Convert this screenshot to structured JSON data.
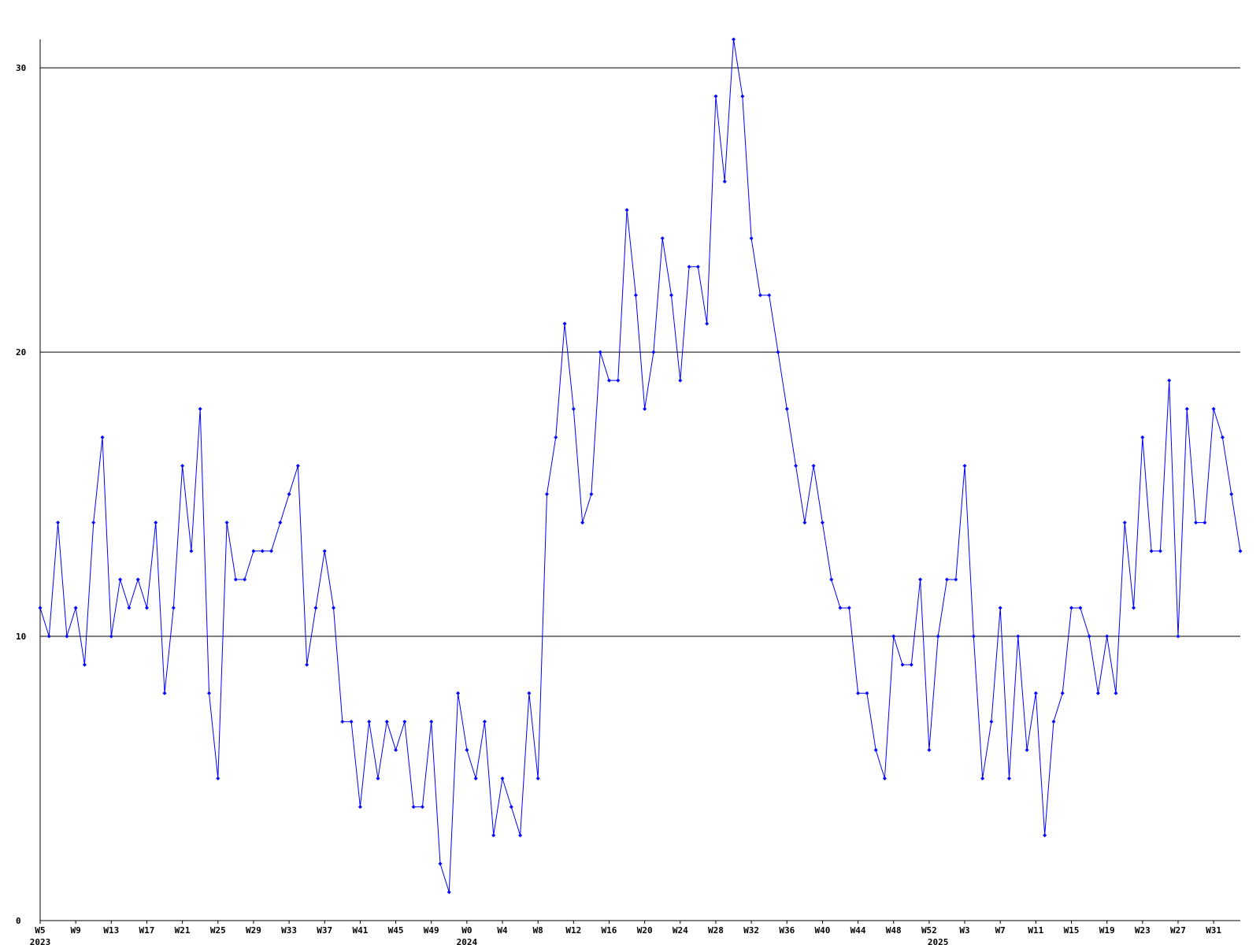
{
  "chart_data": {
    "type": "line",
    "color": "#0000ff",
    "grid": true,
    "ylim": [
      0,
      31
    ],
    "yticks": [
      0,
      10,
      20,
      30
    ],
    "categories": [
      "W5",
      null,
      null,
      null,
      "W9",
      null,
      null,
      null,
      "W13",
      null,
      null,
      null,
      "W17",
      null,
      null,
      null,
      "W21",
      null,
      null,
      null,
      "W25",
      null,
      null,
      null,
      "W29",
      null,
      null,
      null,
      "W33",
      null,
      null,
      null,
      "W37",
      null,
      null,
      null,
      "W41",
      null,
      null,
      null,
      "W45",
      null,
      null,
      null,
      "W49",
      null,
      null,
      null,
      "W0",
      null,
      null,
      null,
      "W4",
      null,
      null,
      null,
      "W8",
      null,
      null,
      null,
      "W12",
      null,
      null,
      null,
      "W16",
      null,
      null,
      null,
      "W20",
      null,
      null,
      null,
      "W24",
      null,
      null,
      null,
      "W28",
      null,
      null,
      null,
      "W32",
      null,
      null,
      null,
      "W36",
      null,
      null,
      null,
      "W40",
      null,
      null,
      null,
      "W44",
      null,
      null,
      null,
      "W48",
      null,
      null,
      null,
      "W52",
      null,
      null,
      null,
      "W3",
      null,
      null,
      null,
      "W7",
      null,
      null,
      null,
      "W11",
      null,
      null,
      null,
      "W15",
      null,
      null,
      null,
      "W19",
      null,
      null,
      null,
      "W23",
      null,
      null,
      null,
      "W27",
      null,
      null,
      null,
      "W31",
      null,
      null,
      null
    ],
    "years": [
      "2023",
      null,
      null,
      null,
      null,
      null,
      null,
      null,
      null,
      null,
      null,
      null,
      null,
      null,
      null,
      null,
      null,
      null,
      null,
      null,
      null,
      null,
      null,
      null,
      null,
      null,
      null,
      null,
      null,
      null,
      null,
      null,
      null,
      null,
      null,
      null,
      null,
      null,
      null,
      null,
      null,
      null,
      null,
      null,
      null,
      null,
      null,
      null,
      "2024",
      null,
      null,
      null,
      null,
      null,
      null,
      null,
      null,
      null,
      null,
      null,
      null,
      null,
      null,
      null,
      null,
      null,
      null,
      null,
      null,
      null,
      null,
      null,
      null,
      null,
      null,
      null,
      null,
      null,
      null,
      null,
      null,
      null,
      null,
      null,
      null,
      null,
      null,
      null,
      null,
      null,
      null,
      null,
      null,
      null,
      null,
      null,
      null,
      null,
      null,
      null,
      null,
      "2025",
      null,
      null,
      null,
      null,
      null,
      null,
      null,
      null,
      null,
      null,
      null,
      null,
      null,
      null,
      null,
      null,
      null,
      null,
      null,
      null,
      null,
      null,
      null,
      null,
      null,
      null,
      null,
      null,
      null,
      null,
      null,
      null,
      null
    ],
    "values": [
      11,
      10,
      14,
      10,
      11,
      9,
      14,
      17,
      10,
      12,
      11,
      12,
      11,
      14,
      8,
      11,
      16,
      13,
      18,
      8,
      5,
      14,
      12,
      12,
      13,
      13,
      13,
      14,
      15,
      16,
      9,
      11,
      13,
      11,
      7,
      7,
      4,
      7,
      5,
      7,
      6,
      7,
      4,
      4,
      7,
      2,
      1,
      8,
      6,
      5,
      7,
      3,
      5,
      4,
      3,
      8,
      5,
      15,
      17,
      21,
      18,
      14,
      15,
      20,
      19,
      19,
      25,
      22,
      18,
      20,
      24,
      22,
      19,
      23,
      23,
      21,
      29,
      26,
      31,
      29,
      24,
      22,
      22,
      20,
      18,
      16,
      14,
      16,
      14,
      12,
      11,
      11,
      8,
      8,
      6,
      5,
      10,
      9,
      9,
      12,
      6,
      10,
      12,
      12,
      16,
      10,
      5,
      7,
      11,
      5,
      10,
      6,
      8,
      3,
      7,
      8,
      11,
      11,
      10,
      8,
      10,
      8,
      14,
      11,
      17,
      13,
      13,
      19,
      10,
      18,
      14,
      14,
      18,
      17,
      15,
      13
    ]
  }
}
